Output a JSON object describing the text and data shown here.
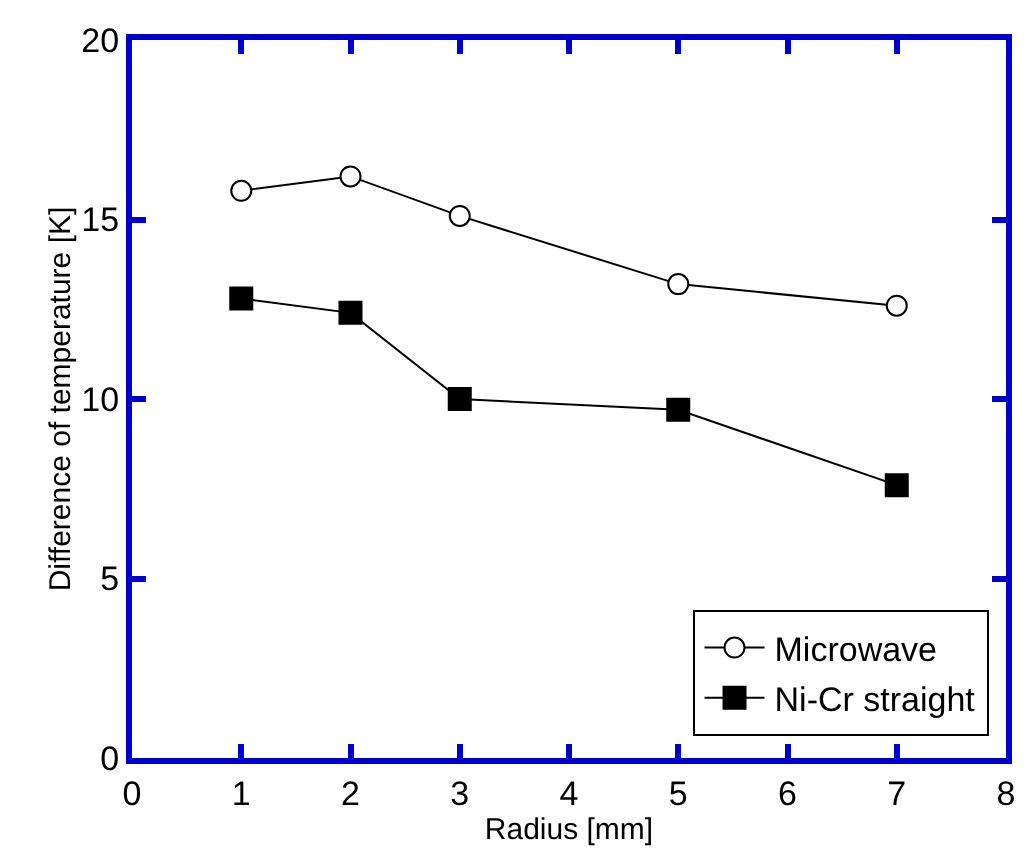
{
  "chart_data": {
    "type": "line",
    "xlabel": "Radius [mm]",
    "ylabel": "Difference of temperature [K]",
    "x": [
      1,
      2,
      3,
      5,
      7
    ],
    "series": [
      {
        "name": "Microwave",
        "color": "#000000",
        "marker": "circle",
        "values": [
          15.8,
          16.2,
          15.1,
          13.2,
          12.6
        ]
      },
      {
        "name": "Ni-Cr straight",
        "color": "#000000",
        "marker": "square",
        "values": [
          12.8,
          12.4,
          10.0,
          9.7,
          7.6
        ]
      }
    ],
    "xlim": [
      0,
      8
    ],
    "xticks": [
      0,
      1,
      2,
      3,
      4,
      5,
      6,
      7,
      8
    ],
    "ylim": [
      0,
      20
    ],
    "yticks": [
      0,
      5,
      10,
      15,
      20
    ],
    "grid": false,
    "legend": "bottom right",
    "line_style": "solid"
  }
}
